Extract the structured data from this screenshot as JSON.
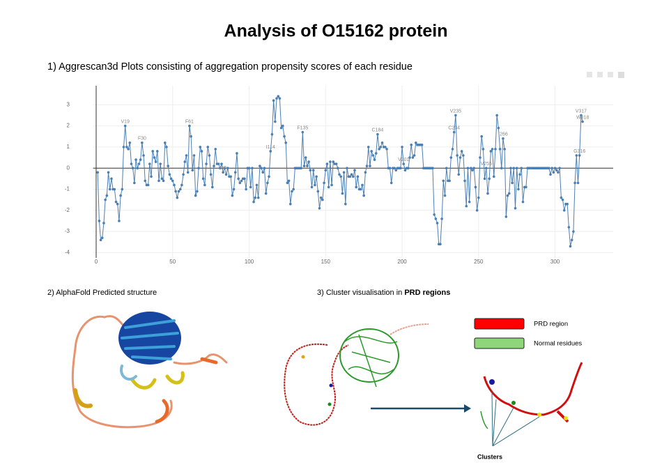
{
  "title": "Analysis of O15162 protein",
  "chart_data": {
    "type": "line",
    "title": "1) Aggrescan3d Plots consisting of aggregation propensity scores of each residue",
    "color": "#4a7fb5",
    "x": [
      1,
      2,
      3,
      4,
      5,
      6,
      7,
      8,
      9,
      10,
      11,
      12,
      13,
      14,
      15,
      16,
      17,
      18,
      19,
      20,
      21,
      22,
      23,
      24,
      25,
      26,
      27,
      28,
      29,
      30,
      31,
      32,
      33,
      34,
      35,
      36,
      37,
      38,
      39,
      40,
      41,
      42,
      43,
      44,
      45,
      46,
      47,
      48,
      49,
      50,
      51,
      52,
      53,
      54,
      55,
      56,
      57,
      58,
      59,
      60,
      61,
      62,
      63,
      64,
      65,
      66,
      67,
      68,
      69,
      70,
      71,
      72,
      73,
      74,
      75,
      76,
      77,
      78,
      79,
      80,
      81,
      82,
      83,
      84,
      85,
      86,
      87,
      88,
      89,
      90,
      91,
      92,
      93,
      94,
      95,
      96,
      97,
      98,
      99,
      100,
      101,
      102,
      103,
      104,
      105,
      106,
      107,
      108,
      109,
      110,
      111,
      112,
      113,
      114,
      115,
      116,
      117,
      118,
      119,
      120,
      121,
      122,
      123,
      124,
      125,
      126,
      127,
      128,
      129,
      130,
      131,
      132,
      133,
      134,
      135,
      136,
      137,
      138,
      139,
      140,
      141,
      142,
      143,
      144,
      145,
      146,
      147,
      148,
      149,
      150,
      151,
      152,
      153,
      154,
      155,
      156,
      157,
      158,
      159,
      160,
      161,
      162,
      163,
      164,
      165,
      166,
      167,
      168,
      169,
      170,
      171,
      172,
      173,
      174,
      175,
      176,
      177,
      178,
      179,
      180,
      181,
      182,
      183,
      184,
      185,
      186,
      187,
      188,
      189,
      190,
      191,
      192,
      193,
      194,
      195,
      196,
      197,
      198,
      199,
      200,
      201,
      202,
      203,
      204,
      205,
      206,
      207,
      208,
      209,
      210,
      211,
      212,
      213,
      214,
      215,
      216,
      217,
      218,
      219,
      220,
      221,
      222,
      223,
      224,
      225,
      226,
      227,
      228,
      229,
      230,
      231,
      232,
      233,
      234,
      235,
      236,
      237,
      238,
      239,
      240,
      241,
      242,
      243,
      244,
      245,
      246,
      247,
      248,
      249,
      250,
      251,
      252,
      253,
      254,
      255,
      256,
      257,
      258,
      259,
      260,
      261,
      262,
      263,
      264,
      265,
      266,
      267,
      268,
      269,
      270,
      271,
      272,
      273,
      274,
      275,
      276,
      277,
      278,
      279,
      280,
      281,
      282,
      283,
      284,
      285,
      286,
      287,
      288,
      289,
      290,
      291,
      292,
      293,
      294,
      295,
      296,
      297,
      298,
      299,
      300,
      301,
      302,
      303,
      304,
      305,
      306,
      307,
      308,
      309,
      310,
      311,
      312,
      313,
      314,
      315,
      316,
      317,
      318
    ],
    "values": [
      -0.2,
      -2.5,
      -3.4,
      -3.3,
      -2.6,
      -1.5,
      -1.3,
      -0.2,
      -1.0,
      -0.5,
      -1.0,
      -1.0,
      -1.6,
      -1.7,
      -2.5,
      -1.3,
      -1.0,
      1.0,
      2.0,
      1.0,
      0.9,
      1.2,
      0.2,
      0.0,
      -0.7,
      0.4,
      0.0,
      0.2,
      0.4,
      1.2,
      0.6,
      -0.6,
      -0.8,
      -0.8,
      0.2,
      -0.4,
      0.8,
      0.5,
      0.3,
      0.8,
      -0.6,
      0.2,
      -0.5,
      -0.6,
      1.2,
      1.0,
      0.1,
      -0.3,
      -0.5,
      -0.6,
      -0.8,
      -1.1,
      -1.4,
      -1.1,
      -1.0,
      -0.8,
      -0.3,
      0.3,
      0.6,
      -0.2,
      2.0,
      1.5,
      -0.1,
      0.6,
      -1.3,
      -1.1,
      0.0,
      1.0,
      0.8,
      -0.5,
      -0.8,
      0.2,
      1.0,
      0.6,
      -0.3,
      -0.9,
      0.1,
      0.9,
      0.2,
      0.2,
      0.0,
      0.2,
      -0.2,
      0.0,
      -0.3,
      0.0,
      -0.4,
      -0.4,
      -1.3,
      -1.0,
      -0.2,
      0.7,
      -0.5,
      -0.7,
      -0.6,
      -0.5,
      -0.5,
      -1.0,
      0.0,
      0.0,
      -0.9,
      0.0,
      -1.6,
      -1.4,
      -0.8,
      -1.4,
      0.1,
      0.0,
      -0.2,
      0.0,
      -1.2,
      -0.7,
      -0.4,
      0.8,
      1.6,
      3.2,
      2.2,
      3.3,
      3.4,
      3.3,
      1.9,
      2.0,
      1.5,
      1.2,
      -0.7,
      -0.6,
      -1.7,
      -1.1,
      -1.0,
      0.0,
      0.0,
      0.0,
      0.0,
      0.0,
      1.7,
      0.1,
      0.5,
      0.1,
      0.3,
      -0.1,
      -0.9,
      -0.1,
      -0.8,
      -0.4,
      -1.1,
      -1.9,
      -1.4,
      -1.5,
      -0.7,
      -0.1,
      0.2,
      -0.9,
      0.3,
      -0.8,
      0.3,
      0.2,
      0.2,
      0.0,
      -0.3,
      -0.4,
      -1.2,
      -0.2,
      -1.7,
      0.0,
      -0.4,
      -0.4,
      -0.3,
      -0.4,
      -0.1,
      -0.9,
      -0.4,
      -1.0,
      -1.0,
      -0.8,
      -1.3,
      -0.2,
      0.1,
      1.0,
      0.1,
      0.8,
      0.6,
      0.4,
      0.7,
      1.6,
      0.9,
      1.0,
      1.2,
      1.0,
      1.0,
      0.9,
      0.0,
      0.0,
      -0.7,
      0.0,
      0.0,
      -0.1,
      0.0,
      0.0,
      0.0,
      1.0,
      0.2,
      -0.1,
      0.0,
      0.0,
      0.5,
      1.1,
      0.5,
      0.6,
      1.2,
      1.1,
      1.1,
      1.1,
      1.1,
      0.0,
      0.0,
      0.0,
      0.0,
      0.0,
      0.0,
      0.0,
      -2.2,
      -2.4,
      -2.6,
      -3.6,
      -3.6,
      -2.4,
      -0.6,
      -1.3,
      0.0,
      -0.6,
      -0.6,
      0.5,
      0.9,
      1.7,
      2.5,
      0.6,
      -0.3,
      0.5,
      0.8,
      0.6,
      -0.6,
      -1.8,
      0.0,
      -1.6,
      0.0,
      -0.1,
      0.0,
      -0.9,
      -2.0,
      -1.4,
      0.5,
      1.5,
      0.9,
      -0.5,
      0.0,
      -1.2,
      -0.5,
      0.8,
      0.9,
      -0.4,
      0.9,
      2.5,
      1.9,
      0.9,
      0.0,
      1.4,
      0.9,
      -2.3,
      -1.3,
      -1.2,
      0.0,
      -0.7,
      0.0,
      -1.9,
      0.0,
      -1.0,
      -0.3,
      0.0,
      -1.6,
      -0.9,
      -0.9,
      0.0,
      0.0,
      0.0,
      0.0,
      0.0,
      0.0,
      0.0,
      0.0,
      0.0,
      0.0,
      0.0,
      0.0,
      0.0,
      0.0,
      0.0,
      -0.3,
      0.0,
      -0.2,
      0.0,
      -0.1,
      -0.2,
      0.0,
      -1.4,
      -1.5,
      -2.0,
      -1.7,
      -1.7,
      -2.8,
      -3.7,
      -3.4,
      -3.0,
      -0.7,
      0.6,
      -0.7,
      0.6,
      2.5,
      2.2
    ],
    "xlim": [
      -2,
      338
    ],
    "ylim": [
      -4.25,
      3.9
    ],
    "xticks": [
      0,
      50,
      100,
      150,
      200,
      250,
      300
    ],
    "yticks": [
      -4,
      -3,
      -2,
      -1,
      0,
      1,
      2,
      3
    ],
    "grid": true,
    "annotations": [
      {
        "text": "V19",
        "x": 19
      },
      {
        "text": "F30",
        "x": 30
      },
      {
        "text": "F61",
        "x": 61
      },
      {
        "text": "I83",
        "x": 83
      },
      {
        "text": "I114",
        "x": 114
      },
      {
        "text": "F135",
        "x": 135
      },
      {
        "text": "C184",
        "x": 184
      },
      {
        "text": "V201",
        "x": 201
      },
      {
        "text": "C234",
        "x": 234
      },
      {
        "text": "V235",
        "x": 235
      },
      {
        "text": "V255",
        "x": 255
      },
      {
        "text": "I266",
        "x": 266
      },
      {
        "text": "G316",
        "x": 316
      },
      {
        "text": "V317",
        "x": 317
      },
      {
        "text": "W318",
        "x": 318
      }
    ]
  },
  "panels": {
    "structure_title": "2) AlphaFold Predicted structure",
    "cluster_title": "3) Cluster visualisation in ",
    "cluster_title_bold": "PRD regions",
    "legend": [
      {
        "label": "PRD region",
        "color": "#ff0000"
      },
      {
        "label": "Normal residues",
        "color": "#8fd67a"
      }
    ],
    "clusters_label": "Clusters"
  }
}
